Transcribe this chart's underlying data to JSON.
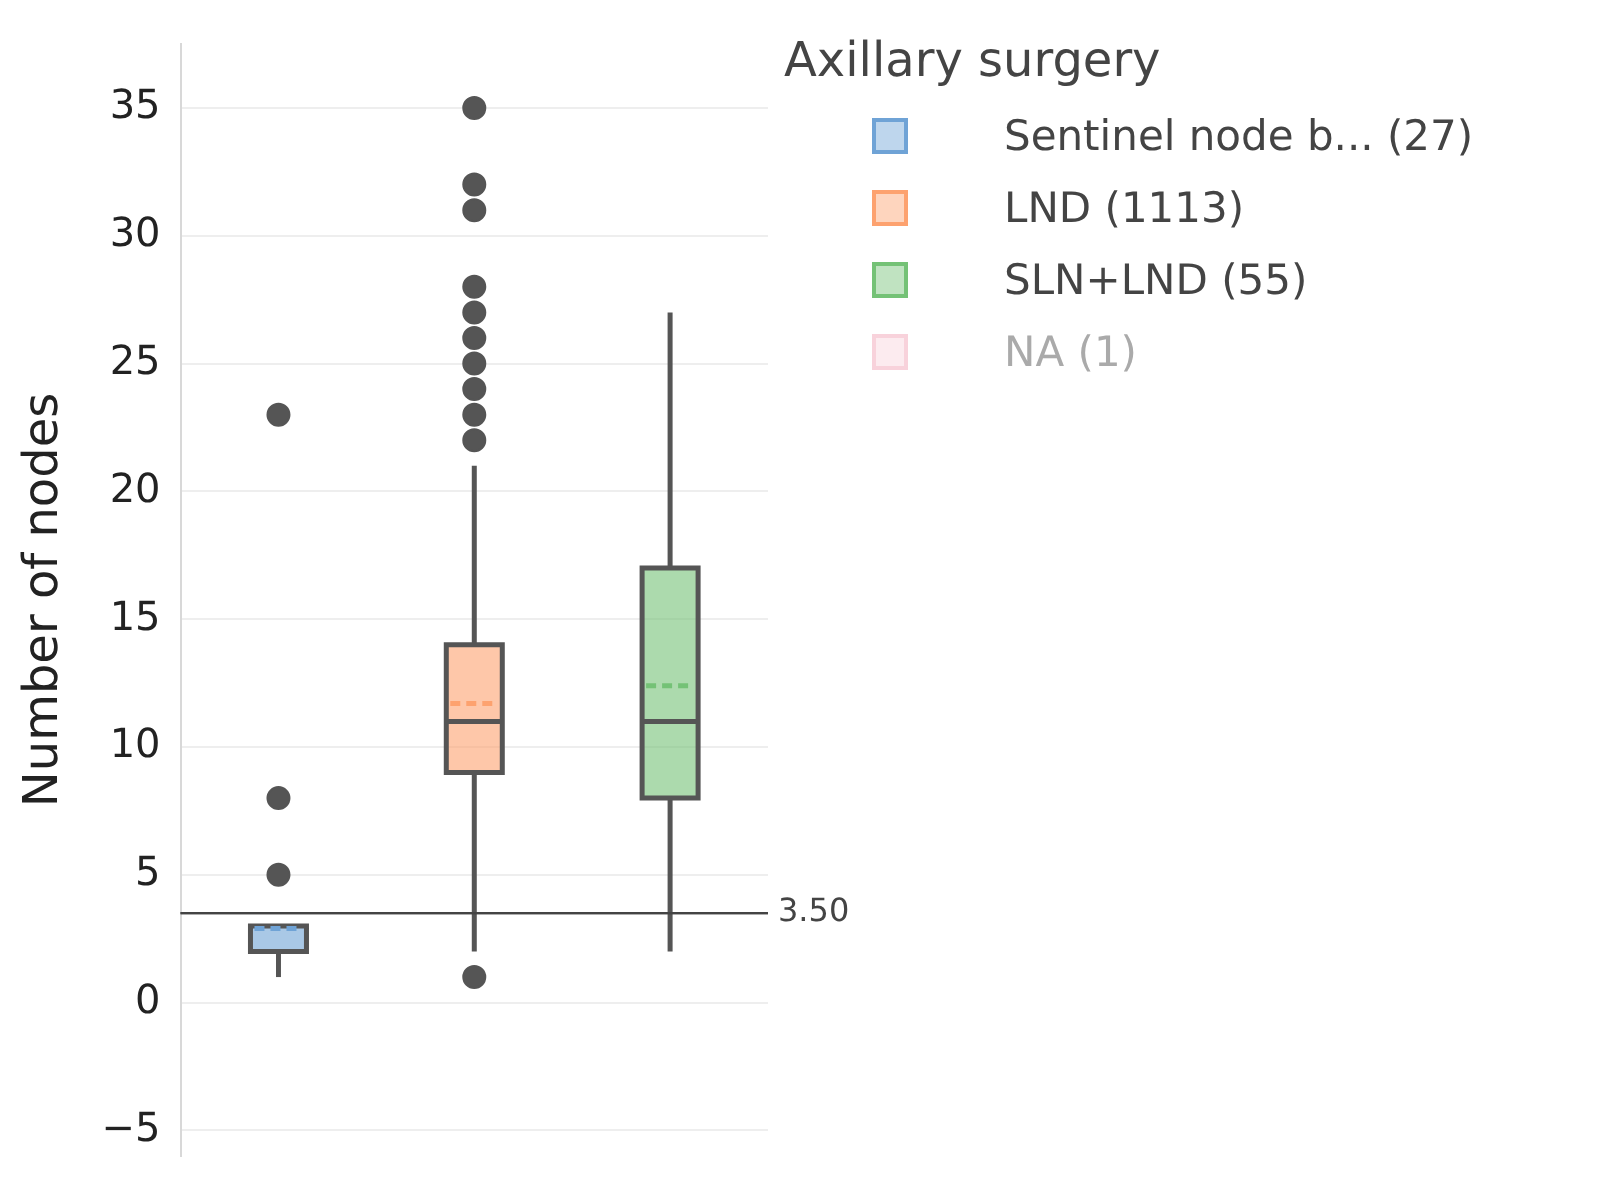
{
  "chart_data": {
    "type": "box",
    "ylabel": "Number of nodes",
    "legend_title": "Axillary surgery",
    "legend": "right",
    "grid": "y",
    "tick_labels": "y",
    "categories": [
      null,
      null,
      null
    ],
    "ylim": [
      -6,
      37.5
    ],
    "yticks": [
      {
        "value": -5,
        "label": "−5"
      },
      0,
      5,
      10,
      15,
      20,
      25,
      30,
      35
    ],
    "ref_lines": [
      {
        "axis": "y",
        "value": 3.5,
        "label": "3.50",
        "color": "#444444"
      }
    ],
    "series": [
      {
        "name": "Sentinel node b... (27)",
        "color": "#6fa3d6",
        "boxes": [
          {
            "low": 1,
            "q1": 2,
            "median": 2,
            "q3": 3,
            "high": 3,
            "mean": 2.9,
            "outliers": [
              5,
              8,
              23
            ]
          },
          null,
          null
        ]
      },
      {
        "name": "LND (1113)",
        "color": "#fda26f",
        "boxes": [
          null,
          {
            "low": 2,
            "q1": 9,
            "median": 11,
            "q3": 14,
            "high": 21,
            "mean": 11.7,
            "outliers": [
              1,
              22,
              23,
              24,
              25,
              26,
              27,
              28,
              31,
              32,
              35
            ]
          },
          null
        ]
      },
      {
        "name": "SLN+LND (55)",
        "color": "#74c276",
        "boxes": [
          null,
          null,
          {
            "low": 2,
            "q1": 8,
            "median": 11,
            "q3": 17,
            "high": 27,
            "mean": 12.4
          }
        ]
      },
      {
        "name": "NA (1)",
        "color": "#f2a7b8",
        "boxes": [
          null,
          null,
          null
        ]
      }
    ]
  }
}
